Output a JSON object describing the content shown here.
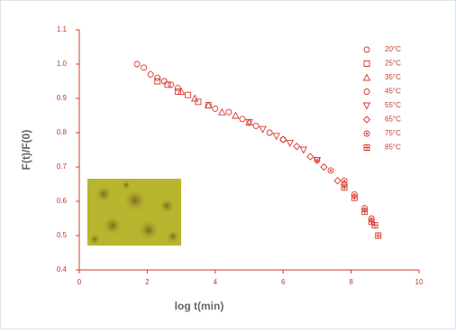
{
  "chart_data": {
    "type": "scatter",
    "x_label": "log t(min)",
    "y_label": "F(t)/F(0)",
    "xlim": [
      0,
      10
    ],
    "xticks": [
      0,
      2,
      4,
      6,
      8,
      10
    ],
    "ylim": [
      0.4,
      1.1
    ],
    "yticks": [
      0.4,
      0.5,
      0.6,
      0.7,
      0.8,
      0.9,
      {
        "value": 1,
        "label": "1.0"
      },
      1.1
    ],
    "grid": false,
    "legend": "upper right",
    "series": [
      {
        "name": "20°C",
        "color": "#d9352b",
        "marker": "circle",
        "x": [
          1.7,
          1.9,
          2.1,
          2.3,
          2.5,
          2.7,
          2.9
        ],
        "values": [
          1.0,
          0.99,
          0.97,
          0.96,
          0.95,
          0.94,
          0.93
        ]
      },
      {
        "name": "25°C",
        "color": "#d9352b",
        "marker": "square",
        "x": [
          2.3,
          2.6,
          2.9,
          3.2,
          3.5,
          3.8
        ],
        "values": [
          0.95,
          0.94,
          0.92,
          0.91,
          0.89,
          0.88
        ]
      },
      {
        "name": "35°C",
        "color": "#d9352b",
        "marker": "triangle",
        "x": [
          3.0,
          3.4,
          3.8,
          4.2,
          4.6,
          5.0
        ],
        "values": [
          0.92,
          0.9,
          0.88,
          0.86,
          0.85,
          0.83
        ]
      },
      {
        "name": "45°C",
        "color": "#d9352b",
        "marker": "circle",
        "x": [
          4.0,
          4.4,
          4.8,
          5.2,
          5.6,
          6.0
        ],
        "values": [
          0.87,
          0.86,
          0.84,
          0.82,
          0.8,
          0.78
        ]
      },
      {
        "name": "55°C",
        "color": "#d9352b",
        "marker": "triangle-down",
        "x": [
          5.0,
          5.4,
          5.8,
          6.2,
          6.6,
          7.0
        ],
        "values": [
          0.83,
          0.81,
          0.79,
          0.77,
          0.75,
          0.72
        ]
      },
      {
        "name": "65°C",
        "color": "#d9352b",
        "marker": "diamond",
        "x": [
          6.0,
          6.4,
          6.8,
          7.2,
          7.6,
          7.8
        ],
        "values": [
          0.78,
          0.76,
          0.73,
          0.7,
          0.66,
          0.65
        ]
      },
      {
        "name": "75°C",
        "color": "#d9352b",
        "marker": "circle-dot",
        "x": [
          7.0,
          7.4,
          7.8,
          8.1,
          8.4,
          8.6
        ],
        "values": [
          0.72,
          0.69,
          0.66,
          0.62,
          0.58,
          0.55
        ]
      },
      {
        "name": "85°C",
        "color": "#d9352b",
        "marker": "square-cross",
        "x": [
          7.8,
          8.1,
          8.4,
          8.6,
          8.7,
          8.8
        ],
        "values": [
          0.64,
          0.61,
          0.57,
          0.54,
          0.53,
          0.5
        ]
      }
    ]
  }
}
